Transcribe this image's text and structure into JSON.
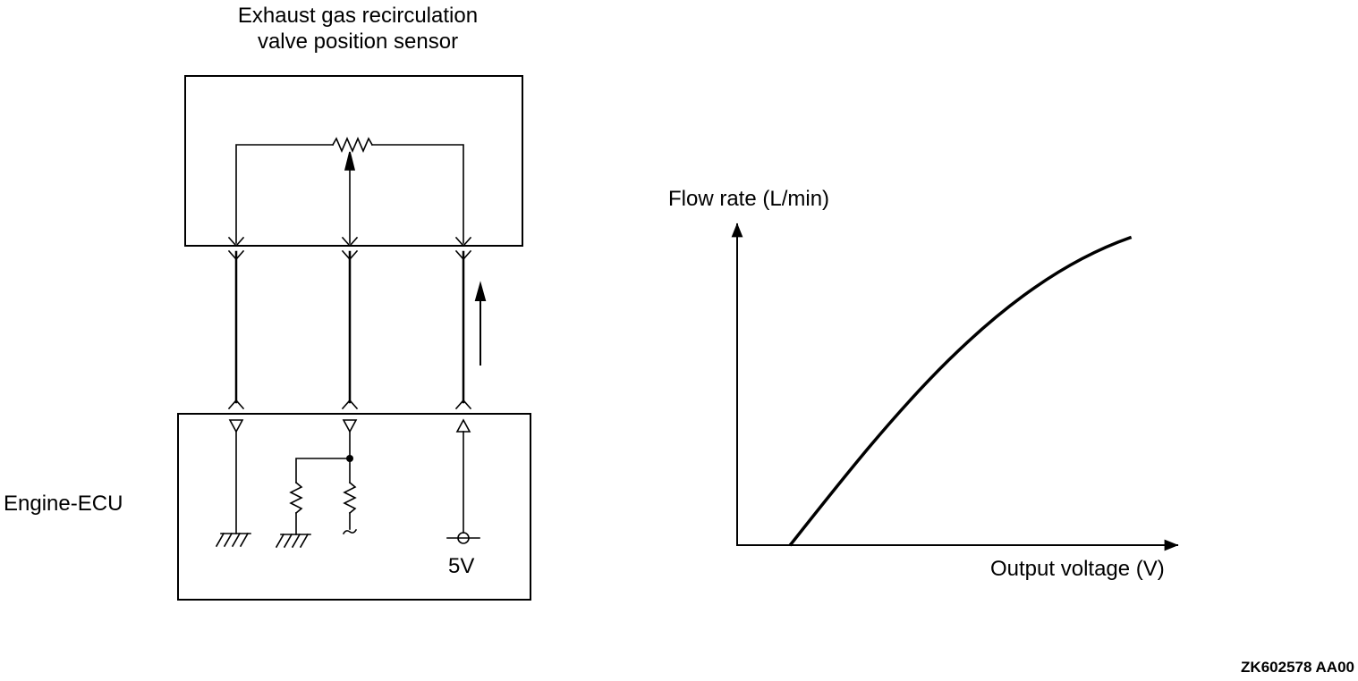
{
  "sensor": {
    "title_line1": "Exhaust gas recirculation",
    "title_line2": "valve position sensor"
  },
  "ecu": {
    "label": "Engine-ECU",
    "supply_voltage": "5V"
  },
  "graph": {
    "y_axis_label": "Flow rate (L/min)",
    "x_axis_label": "Output voltage (V)"
  },
  "figure_code": "ZK602578 AA00",
  "colors": {
    "line": "#000000",
    "background": "#ffffff"
  }
}
